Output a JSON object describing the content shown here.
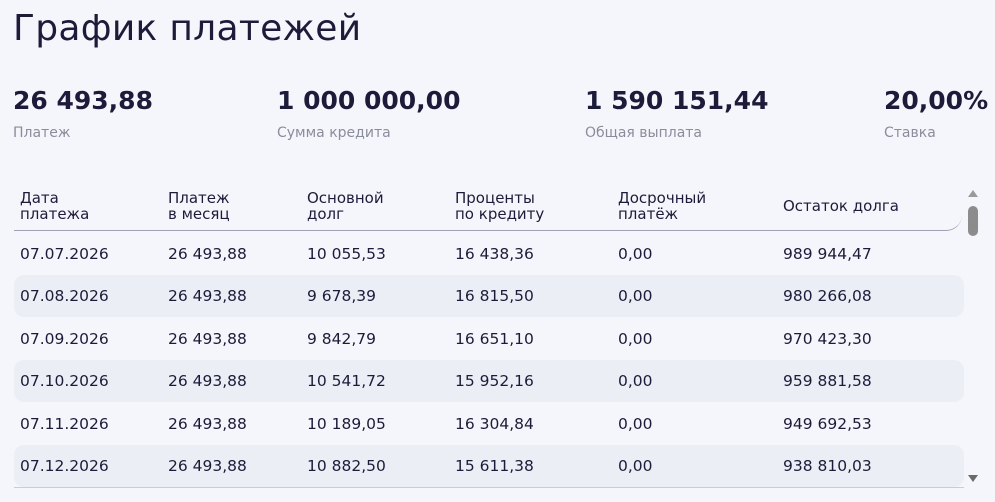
{
  "header": {
    "title": "График платежей"
  },
  "summary": [
    {
      "value": "26 493,88",
      "label": "Платеж"
    },
    {
      "value": "1 000 000,00",
      "label": "Сумма кредита"
    },
    {
      "value": "1 590 151,44",
      "label": "Общая выплата"
    },
    {
      "value": "20,00%",
      "label": "Ставка"
    }
  ],
  "table": {
    "columns": [
      [
        "Дата",
        "платежа"
      ],
      [
        "Платеж",
        "в месяц"
      ],
      [
        "Основной",
        "долг"
      ],
      [
        "Проценты",
        "по кредиту"
      ],
      [
        "Досрочный",
        "платёж"
      ],
      [
        "Остаток долга"
      ]
    ],
    "rows": [
      [
        "07.07.2026",
        "26 493,88",
        "10 055,53",
        "16 438,36",
        "0,00",
        "989 944,47"
      ],
      [
        "07.08.2026",
        "26 493,88",
        "9 678,39",
        "16 815,50",
        "0,00",
        "980 266,08"
      ],
      [
        "07.09.2026",
        "26 493,88",
        "9 842,79",
        "16 651,10",
        "0,00",
        "970 423,30"
      ],
      [
        "07.10.2026",
        "26 493,88",
        "10 541,72",
        "15 952,16",
        "0,00",
        "959 881,58"
      ],
      [
        "07.11.2026",
        "26 493,88",
        "10 189,05",
        "16 304,84",
        "0,00",
        "949 692,53"
      ],
      [
        "07.12.2026",
        "26 493,88",
        "10 882,50",
        "15 611,38",
        "0,00",
        "938 810,03"
      ]
    ]
  }
}
